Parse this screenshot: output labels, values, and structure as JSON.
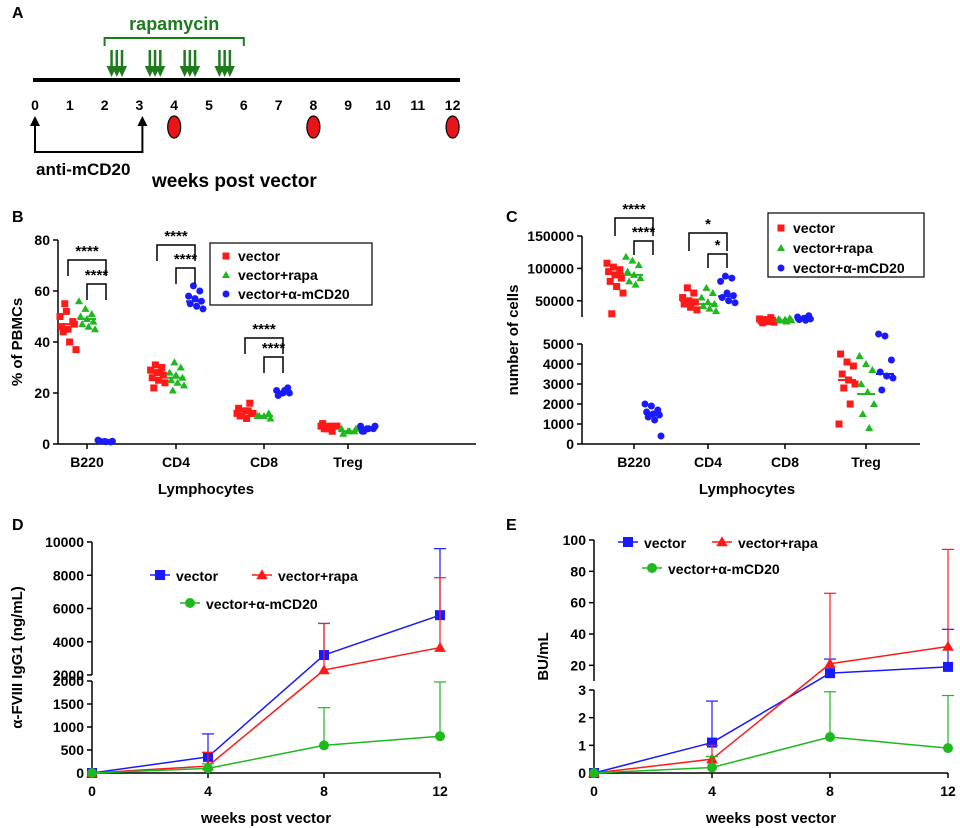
{
  "chart_data": [
    {
      "panel": "A",
      "type": "timeline",
      "treatment_label": "rapamycin",
      "pretreatment_label": "anti-mCD20",
      "xlabel": "weeks post vector",
      "weeks": [
        "0",
        "1",
        "2",
        "3",
        "4",
        "5",
        "6",
        "7",
        "8",
        "9",
        "10",
        "11",
        "12"
      ],
      "treatment_range": [
        2,
        6
      ],
      "pretreatment_range": [
        0,
        3
      ],
      "dose_days_weeks": [
        2.2,
        2.35,
        2.5,
        3.3,
        3.45,
        3.6,
        4.3,
        4.45,
        4.6,
        5.3,
        5.45,
        5.6
      ],
      "sampling_weeks": [
        4,
        8,
        12
      ]
    },
    {
      "panel": "B",
      "type": "scatter",
      "ylabel": "% of PBMCs",
      "xlabel": "Lymphocytes",
      "ylim": [
        0,
        80
      ],
      "yticks": [
        "0",
        "20",
        "40",
        "60",
        "80"
      ],
      "categories": [
        "B220",
        "CD4",
        "CD8",
        "Treg"
      ],
      "legend": [
        "vector",
        "vector+rapa",
        "vector+α-mCD20"
      ],
      "series": [
        {
          "name": "vector",
          "color": "#ff1a1a",
          "marker": "square",
          "points": [
            [
              50,
              52,
              48,
              46,
              45,
              47,
              44,
              40,
              37,
              55
            ],
            [
              31,
              30,
              29,
              28,
              27,
              26,
              25,
              24,
              22,
              28
            ],
            [
              16,
              14,
              13,
              12,
              11,
              10,
              12,
              11,
              13,
              12
            ],
            [
              8,
              7,
              7,
              6,
              6,
              7,
              6,
              5,
              7,
              6
            ]
          ],
          "means": [
            47,
            28,
            12,
            6.5
          ]
        },
        {
          "name": "vector+rapa",
          "color": "#1fb81f",
          "marker": "triangle",
          "points": [
            [
              56,
              53,
              51,
              50,
              49,
              48,
              47,
              46,
              45
            ],
            [
              32,
              30,
              28,
              27,
              26,
              25,
              24,
              23,
              21
            ],
            [
              12,
              11,
              11,
              10,
              11
            ],
            [
              6,
              5,
              5,
              4,
              5,
              6
            ]
          ],
          "means": [
            49,
            26,
            11,
            5
          ]
        },
        {
          "name": "vector+α-mCD20",
          "color": "#1a1aff",
          "marker": "circle",
          "points": [
            [
              1.5,
              1,
              0.8,
              1.2,
              0.9,
              1.1
            ],
            [
              62,
              60,
              58,
              57,
              56,
              55,
              54,
              53
            ],
            [
              22,
              21,
              20,
              20,
              19,
              21
            ],
            [
              7,
              6,
              6,
              5,
              6,
              7,
              5
            ]
          ],
          "means": [
            1,
            56,
            20.5,
            6
          ]
        }
      ],
      "brackets": [
        {
          "category": "B220",
          "labels": [
            "****",
            "****"
          ]
        },
        {
          "category": "CD4",
          "labels": [
            "****",
            "****"
          ]
        },
        {
          "category": "CD8",
          "labels": [
            "****",
            "****"
          ]
        }
      ]
    },
    {
      "panel": "C",
      "type": "scatter",
      "ylabel": "number of cells",
      "xlabel": "Lymphocytes",
      "yticks_upper": [
        "50000",
        "100000",
        "150000"
      ],
      "yticks_lower": [
        "0",
        "1000",
        "2000",
        "3000",
        "4000",
        "5000"
      ],
      "categories": [
        "B220",
        "CD4",
        "CD8",
        "Treg"
      ],
      "legend": [
        "vector",
        "vector+rapa",
        "vector+α-mCD20"
      ],
      "series": [
        {
          "name": "vector",
          "color": "#ff1a1a",
          "marker": "square",
          "points": [
            [
              108000,
              102000,
              98000,
              95000,
              90000,
              85000,
              80000,
              72000,
              62000,
              30000
            ],
            [
              70000,
              62000,
              55000,
              50000,
              48000,
              45000,
              40000,
              36000
            ],
            [
              24000,
              22000,
              21000,
              20000,
              19000,
              18000,
              17000,
              16000
            ],
            [
              4500,
              4100,
              3900,
              3500,
              3200,
              3000,
              2800,
              2000,
              1000
            ]
          ],
          "means": [
            92000,
            50000,
            20000,
            3200
          ]
        },
        {
          "name": "vector+rapa",
          "color": "#1fb81f",
          "marker": "triangle",
          "points": [
            [
              118000,
              112000,
              105000,
              95000,
              90000,
              85000,
              80000,
              75000
            ],
            [
              70000,
              62000,
              55000,
              48000,
              45000,
              42000,
              38000,
              34000
            ],
            [
              23000,
              22000,
              21000,
              20000,
              19500,
              18000
            ],
            [
              4400,
              4000,
              3700,
              3000,
              2600,
              2000,
              1500,
              800
            ]
          ],
          "means": [
            90000,
            45000,
            20000,
            2500
          ]
        },
        {
          "name": "vector+α-mCD20",
          "color": "#1a1aff",
          "marker": "circle",
          "points": [
            [
              2000,
              1900,
              1700,
              1600,
              1500,
              1450,
              1350,
              1200,
              400
            ],
            [
              88000,
              85000,
              80000,
              62000,
              58000,
              55000,
              50000,
              47000
            ],
            [
              27000,
              25000,
              23000,
              22000,
              21000,
              20000
            ],
            [
              5500,
              5400,
              4200,
              3600,
              3400,
              3300,
              2700
            ]
          ],
          "means": [
            1500,
            57000,
            21000,
            3500
          ]
        }
      ],
      "brackets": [
        {
          "category": "B220",
          "labels": [
            "****",
            "****"
          ]
        },
        {
          "category": "CD4",
          "labels": [
            "*",
            "*"
          ]
        }
      ]
    },
    {
      "panel": "D",
      "type": "line",
      "ylabel": "α-FVIII IgG1 (ng/mL)",
      "xlabel": "weeks post vector",
      "x": [
        0,
        4,
        8,
        12
      ],
      "xticks": [
        "0",
        "4",
        "8",
        "12"
      ],
      "yticks_upper": [
        "2000",
        "4000",
        "6000",
        "8000",
        "10000"
      ],
      "yticks_lower": [
        "0",
        "500",
        "1000",
        "1500",
        "2000"
      ],
      "series": [
        {
          "name": "vector",
          "color": "#1a1aff",
          "marker": "square",
          "values": [
            0,
            350,
            3200,
            5600
          ],
          "error": [
            0,
            500,
            1900,
            4000
          ]
        },
        {
          "name": "vector+rapa",
          "color": "#ff1a1a",
          "marker": "triangle",
          "values": [
            0,
            150,
            2300,
            3650
          ],
          "error": [
            0,
            300,
            2800,
            4200
          ]
        },
        {
          "name": "vector+α-mCD20",
          "color": "#1fb81f",
          "marker": "circle",
          "values": [
            0,
            100,
            600,
            800
          ],
          "error": [
            0,
            100,
            820,
            1180
          ]
        }
      ]
    },
    {
      "panel": "E",
      "type": "line",
      "ylabel": "BU/mL",
      "xlabel": "weeks post vector",
      "x": [
        0,
        4,
        8,
        12
      ],
      "xticks": [
        "0",
        "4",
        "8",
        "12"
      ],
      "yticks_upper": [
        "20",
        "40",
        "60",
        "80",
        "100"
      ],
      "yticks_lower": [
        "0",
        "1",
        "2",
        "3"
      ],
      "series": [
        {
          "name": "vector",
          "color": "#1a1aff",
          "marker": "square",
          "values": [
            0,
            1.1,
            15,
            19
          ],
          "error": [
            0,
            1.5,
            9,
            24
          ]
        },
        {
          "name": "vector+rapa",
          "color": "#ff1a1a",
          "marker": "triangle",
          "values": [
            0,
            0.5,
            21,
            32
          ],
          "error": [
            0,
            0.5,
            45,
            62
          ]
        },
        {
          "name": "vector+α-mCD20",
          "color": "#1fb81f",
          "marker": "circle",
          "values": [
            0,
            0.2,
            1.3,
            0.9
          ],
          "error": [
            0,
            0.4,
            1.8,
            1.9
          ]
        }
      ]
    }
  ]
}
